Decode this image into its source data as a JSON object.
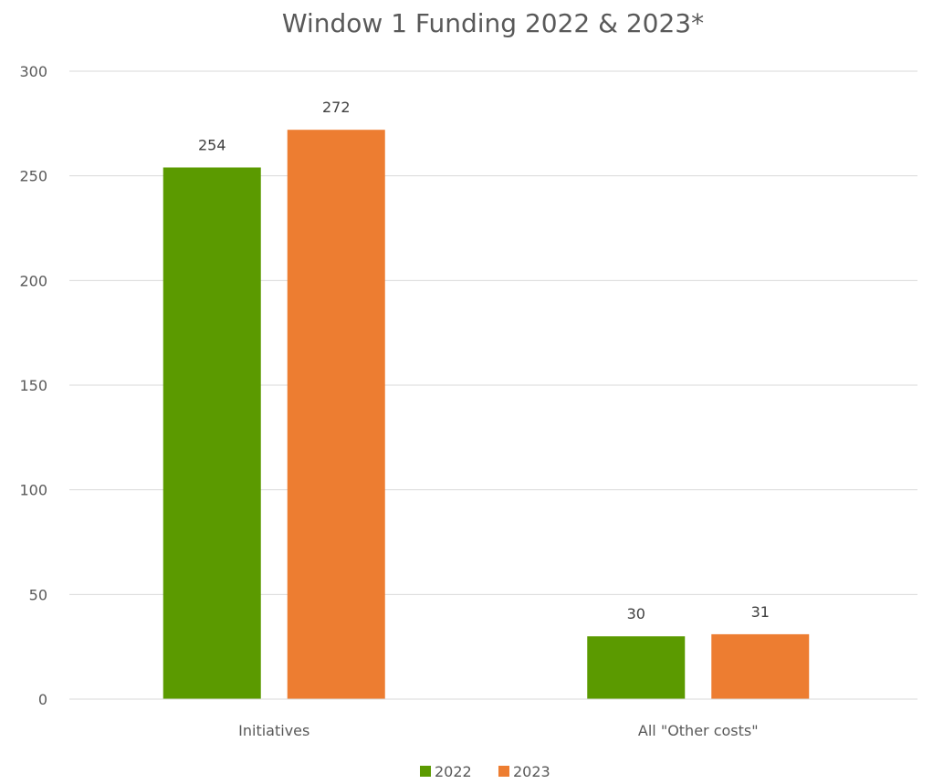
{
  "chart_data": {
    "type": "bar",
    "title": "Window 1 Funding 2022 & 2023*",
    "xlabel": "",
    "ylabel": "",
    "categories": [
      "Initiatives",
      "All \"Other costs\""
    ],
    "series": [
      {
        "name": "2022",
        "values": [
          254,
          30
        ],
        "color": "#5B9A00"
      },
      {
        "name": "2023",
        "values": [
          272,
          31
        ],
        "color": "#ED7D31"
      }
    ],
    "ylim": [
      0,
      300
    ],
    "yticks": [
      0,
      50,
      100,
      150,
      200,
      250,
      300
    ],
    "grid": true,
    "legend_position": "bottom",
    "data_labels": true
  }
}
